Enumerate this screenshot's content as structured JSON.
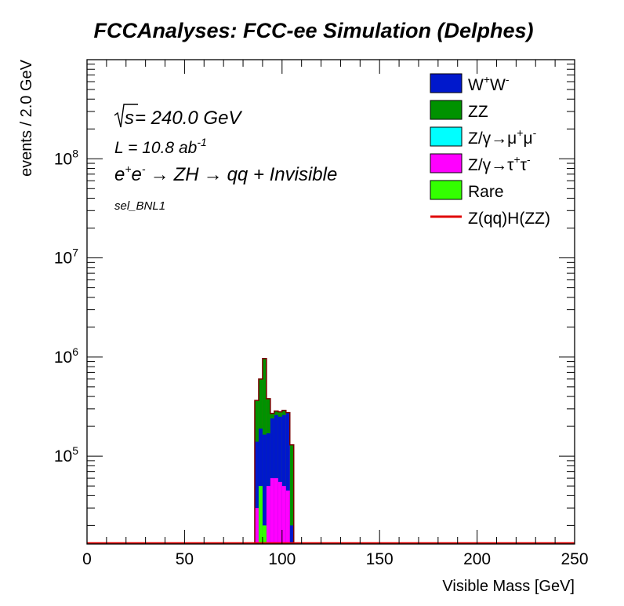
{
  "chart_data": {
    "type": "histogram-stacked",
    "title": "FCCAnalyses: FCC-ee Simulation (Delphes)",
    "xlabel": "Visible Mass [GeV]",
    "ylabel": "events / 2.0 GeV",
    "xlim": [
      0,
      250
    ],
    "ylim_log": [
      13000,
      1000000000
    ],
    "yscale": "log",
    "x_ticks": [
      0,
      50,
      100,
      150,
      200,
      250
    ],
    "y_ticks": [
      {
        "value": 100000,
        "base": "10",
        "exp": "5"
      },
      {
        "value": 1000000,
        "base": "10",
        "exp": "6"
      },
      {
        "value": 10000000,
        "base": "10",
        "exp": "7"
      },
      {
        "value": 100000000,
        "base": "10",
        "exp": "8"
      }
    ],
    "bin_edges": [
      86,
      88,
      90,
      92,
      94,
      96,
      98,
      100,
      102,
      104,
      106
    ],
    "annotations": {
      "sqrt_s": {
        "sym": "s",
        "text": " = 240.0 GeV"
      },
      "lumi": {
        "base": "L = 10.8 ab",
        "exp": "-1"
      },
      "process": {
        "e1": "e",
        "e1_sup": "+",
        "e2": "e",
        "e2_sup": "-",
        "arrow1": "→",
        "zh": "ZH",
        "arrow2": "→",
        "final": "qq + Invisible"
      },
      "selection": "sel_BNL1"
    },
    "legend": [
      {
        "parts": [
          [
            "W",
            ""
          ],
          [
            "+",
            "sup"
          ],
          [
            "W",
            ""
          ],
          [
            "-",
            "sup"
          ]
        ],
        "color": "#0018CC",
        "kind": "box"
      },
      {
        "parts": [
          [
            "ZZ",
            ""
          ]
        ],
        "color": "#009200",
        "kind": "box"
      },
      {
        "parts": [
          [
            "Z/γ→μ",
            ""
          ],
          [
            "+",
            "sup"
          ],
          [
            "μ",
            ""
          ],
          [
            "-",
            "sup"
          ]
        ],
        "color": "#00FFFF",
        "kind": "box"
      },
      {
        "parts": [
          [
            "Z/γ→τ",
            ""
          ],
          [
            "+",
            "sup"
          ],
          [
            "τ",
            ""
          ],
          [
            "-",
            "sup"
          ]
        ],
        "color": "#FF00FF",
        "kind": "box"
      },
      {
        "parts": [
          [
            "Rare",
            ""
          ]
        ],
        "color": "#33FF00",
        "kind": "box"
      },
      {
        "parts": [
          [
            "Z(qq)H(ZZ)",
            ""
          ]
        ],
        "color": "#E00000",
        "kind": "line"
      }
    ],
    "series": [
      {
        "name": "Rare",
        "color": "#33FF00",
        "values": [
          0,
          50000,
          20000,
          0,
          0,
          0,
          0,
          0,
          0,
          0
        ]
      },
      {
        "name": "Z/γ→τ+τ-",
        "color": "#FF00FF",
        "values": [
          30000,
          0,
          0,
          50000,
          60000,
          60000,
          55000,
          50000,
          45000,
          0
        ]
      },
      {
        "name": "Z/γ→μ+μ-",
        "color": "#00FFFF",
        "values": [
          0,
          0,
          0,
          0,
          0,
          0,
          0,
          0,
          0,
          0
        ]
      },
      {
        "name": "W+W-",
        "color": "#0018CC",
        "values": [
          110000,
          140000,
          145000,
          120000,
          180000,
          200000,
          195000,
          210000,
          230000,
          20000
        ]
      },
      {
        "name": "ZZ",
        "color": "#009200",
        "values": [
          225000,
          410000,
          800000,
          210000,
          30000,
          25000,
          30000,
          30000,
          0,
          110000
        ]
      },
      {
        "name": "Z(qq)H(ZZ)",
        "color": "#E00000",
        "values": [
          0,
          0,
          0,
          0,
          0,
          0,
          0,
          0,
          0,
          0
        ]
      }
    ]
  }
}
